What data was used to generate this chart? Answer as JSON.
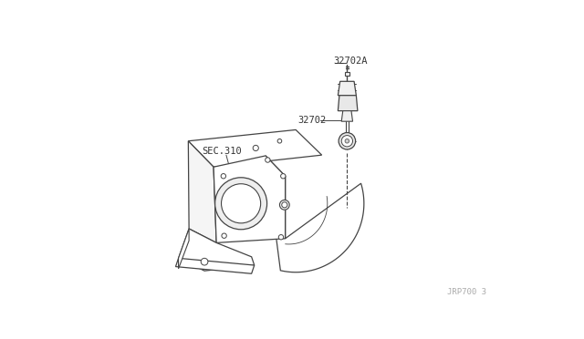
{
  "bg_color": "#ffffff",
  "line_color": "#444444",
  "label_color": "#333333",
  "fig_width": 6.4,
  "fig_height": 3.72,
  "dpi": 100,
  "label_32702A": "32702A",
  "label_32702": "32702",
  "label_sec310": "SEC.310",
  "label_bottom_right": "JRP700 3",
  "label_fontsize": 7.5
}
